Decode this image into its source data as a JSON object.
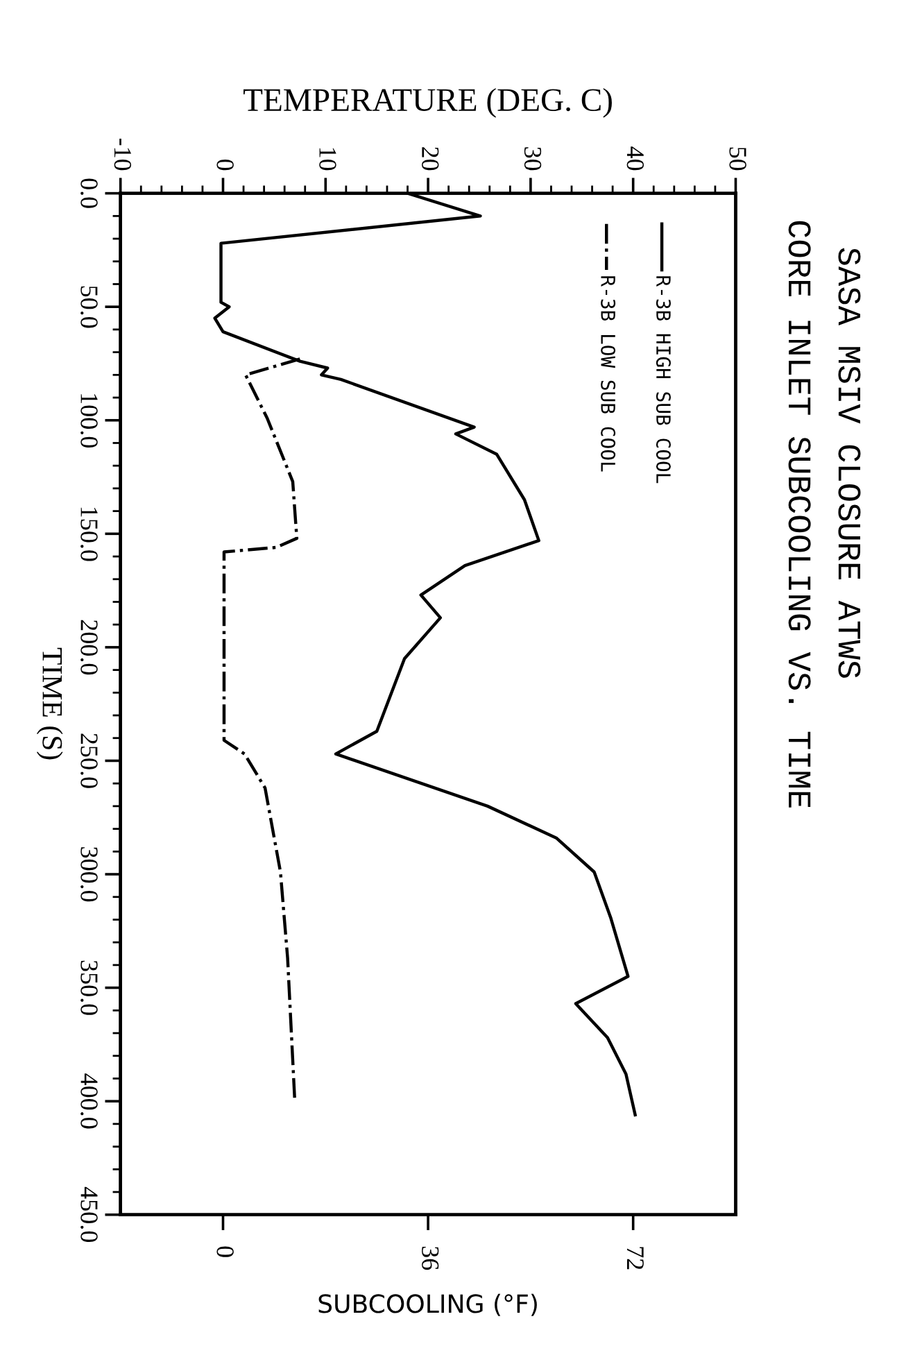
{
  "chart_data": {
    "type": "line",
    "orientation": "horizontal",
    "title": "SASA MSIV CLOSURE ATWS",
    "subtitle": "CORE INLET SUBCOOLING VS. TIME",
    "ylabel": "TIME (S)",
    "x2label": "TEMPERATURE (DEG. C)",
    "xlabel": "SUBCOOLING (°F)",
    "ylim": [
      450,
      0
    ],
    "yticks": [
      {
        "value": 0,
        "label": "0.0"
      },
      {
        "value": 50,
        "label": "50.0"
      },
      {
        "value": 100,
        "label": "100.0"
      },
      {
        "value": 150,
        "label": "150.0"
      },
      {
        "value": 200,
        "label": "200.0"
      },
      {
        "value": 250,
        "label": "250.0"
      },
      {
        "value": 300,
        "label": "300.0"
      },
      {
        "value": 350,
        "label": "350.0"
      },
      {
        "value": 400,
        "label": "400.0"
      },
      {
        "value": 450,
        "label": "450.0"
      }
    ],
    "x2lim": [
      -10,
      50
    ],
    "x2ticks": [
      -10,
      0,
      10,
      20,
      30,
      40,
      50
    ],
    "xlim": [
      -18,
      90
    ],
    "xticks": [
      0,
      36,
      72
    ],
    "legend": "top right",
    "marker": "none",
    "series": [
      {
        "name": "R-3B HIGH SUB COOL",
        "color": "#000000",
        "line_style": "solid",
        "axis": "x2",
        "x": [
          0,
          10,
          22,
          48,
          50,
          55,
          61,
          74,
          77,
          80,
          82,
          103,
          106,
          115,
          135,
          153,
          164,
          177,
          187,
          205,
          237,
          247,
          270,
          284,
          299,
          319,
          345,
          357,
          372,
          388,
          406
        ],
        "values": [
          18,
          25.1,
          -0.2,
          -0.2,
          0.6,
          -0.8,
          0,
          7.5,
          10.2,
          9.6,
          11.5,
          24.5,
          22.7,
          26.7,
          29.4,
          30.8,
          23.6,
          19.3,
          21.2,
          17.7,
          15,
          11,
          25.8,
          32.5,
          36.2,
          37.8,
          39.5,
          34.4,
          37.5,
          39.3,
          40.2
        ]
      },
      {
        "name": "R-3B LOW SUB COOL",
        "color": "#000000",
        "line_style": "dashdot",
        "axis": "x2",
        "x": [
          73,
          80,
          99,
          127,
          146,
          152,
          156,
          158,
          241,
          247,
          262,
          299,
          337,
          400
        ],
        "values": [
          7.5,
          2.2,
          4.3,
          6.8,
          7.1,
          7.2,
          5.2,
          0.1,
          0.1,
          2.1,
          4.1,
          5.6,
          6.3,
          7.0
        ]
      }
    ]
  }
}
